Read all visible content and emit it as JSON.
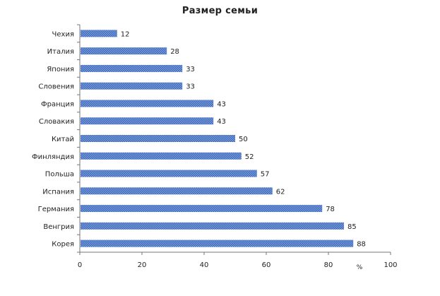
{
  "chart_data": {
    "type": "bar",
    "orientation": "horizontal",
    "title": "Размер семьи",
    "categories": [
      "Чехия",
      "Италия",
      "Япония",
      "Словения",
      "Франция",
      "Словакия",
      "Китай",
      "Финляндия",
      "Польша",
      "Испания",
      "Германия",
      "Венгрия",
      "Корея"
    ],
    "values": [
      12,
      28,
      33,
      33,
      43,
      43,
      50,
      52,
      57,
      62,
      78,
      85,
      88
    ],
    "xlim": [
      0,
      100
    ],
    "xticks": [
      0,
      20,
      40,
      60,
      80,
      100
    ],
    "xunit": "%",
    "bar_color": "#4a78c8",
    "grid": false,
    "legend": "none"
  }
}
